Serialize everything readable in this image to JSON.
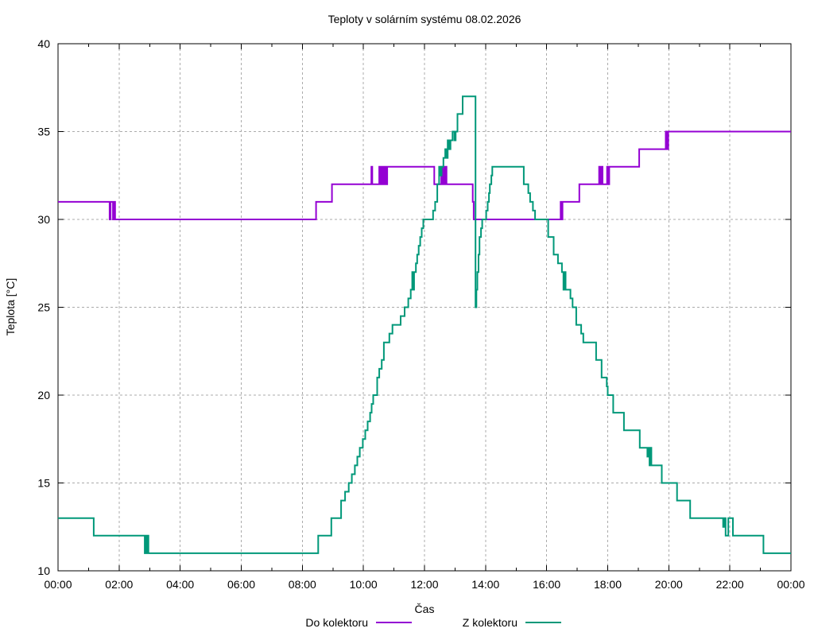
{
  "chart_data": {
    "type": "line",
    "title": "Teploty v solárním systému 08.02.2026",
    "xlabel": "Čas",
    "ylabel": "Teplota [°C]",
    "xlim": [
      0,
      24
    ],
    "ylim": [
      10,
      40
    ],
    "grid": "dashed",
    "background": "#ffffff",
    "border_color": "#000000",
    "grid_color": "#ababab",
    "legend_position": "bottom-center",
    "x_major_tick_step_hours": 2,
    "x_minor_tick_step_hours": 1,
    "x_tick_labels": [
      "00:00",
      "02:00",
      "04:00",
      "06:00",
      "08:00",
      "10:00",
      "12:00",
      "14:00",
      "16:00",
      "18:00",
      "20:00",
      "22:00",
      "00:00"
    ],
    "y_ticks": [
      10,
      15,
      20,
      25,
      30,
      35,
      40
    ],
    "series": [
      {
        "name": "Do kolektoru",
        "color": "#9400d3",
        "style": "steps",
        "steps": [
          [
            0.0,
            31
          ],
          [
            1.69,
            30
          ],
          [
            1.72,
            31
          ],
          [
            1.8,
            30
          ],
          [
            1.83,
            31
          ],
          [
            1.87,
            30
          ],
          [
            8.45,
            31
          ],
          [
            8.97,
            32
          ],
          [
            10.26,
            33
          ],
          [
            10.29,
            32
          ],
          [
            10.52,
            33
          ],
          [
            10.56,
            32
          ],
          [
            10.6,
            33
          ],
          [
            10.64,
            32
          ],
          [
            10.68,
            33
          ],
          [
            10.73,
            32
          ],
          [
            10.78,
            33
          ],
          [
            12.32,
            32
          ],
          [
            12.55,
            33
          ],
          [
            12.58,
            32
          ],
          [
            12.62,
            33
          ],
          [
            12.65,
            32
          ],
          [
            12.69,
            33
          ],
          [
            12.72,
            32
          ],
          [
            13.58,
            31
          ],
          [
            13.61,
            30
          ],
          [
            16.46,
            31
          ],
          [
            16.49,
            30
          ],
          [
            16.52,
            31
          ],
          [
            17.07,
            32
          ],
          [
            17.72,
            33
          ],
          [
            17.75,
            32
          ],
          [
            17.79,
            33
          ],
          [
            17.83,
            32
          ],
          [
            17.98,
            33
          ],
          [
            18.02,
            32
          ],
          [
            18.05,
            33
          ],
          [
            19.03,
            34
          ],
          [
            19.9,
            35
          ],
          [
            19.93,
            34
          ],
          [
            19.98,
            35
          ]
        ]
      },
      {
        "name": "Z kolektoru",
        "color": "#009879",
        "style": "steps",
        "steps": [
          [
            0.0,
            13
          ],
          [
            1.17,
            12
          ],
          [
            2.84,
            11
          ],
          [
            2.87,
            12
          ],
          [
            2.9,
            11
          ],
          [
            2.93,
            12
          ],
          [
            2.96,
            11
          ],
          [
            8.52,
            12
          ],
          [
            8.95,
            13
          ],
          [
            9.27,
            14
          ],
          [
            9.4,
            14.5
          ],
          [
            9.52,
            15
          ],
          [
            9.62,
            15.5
          ],
          [
            9.72,
            16
          ],
          [
            9.8,
            16.5
          ],
          [
            9.88,
            17
          ],
          [
            9.98,
            17.5
          ],
          [
            10.06,
            18
          ],
          [
            10.14,
            18.5
          ],
          [
            10.22,
            19
          ],
          [
            10.27,
            19.5
          ],
          [
            10.32,
            20
          ],
          [
            10.45,
            21
          ],
          [
            10.52,
            21.5
          ],
          [
            10.6,
            22
          ],
          [
            10.67,
            23
          ],
          [
            10.85,
            23.5
          ],
          [
            10.95,
            24
          ],
          [
            11.22,
            24.5
          ],
          [
            11.35,
            25
          ],
          [
            11.47,
            25.5
          ],
          [
            11.55,
            26
          ],
          [
            11.6,
            27
          ],
          [
            11.63,
            26
          ],
          [
            11.66,
            27
          ],
          [
            11.72,
            27.5
          ],
          [
            11.76,
            28
          ],
          [
            11.81,
            28.5
          ],
          [
            11.86,
            29
          ],
          [
            11.91,
            29.5
          ],
          [
            11.96,
            30
          ],
          [
            12.28,
            30.5
          ],
          [
            12.35,
            31
          ],
          [
            12.42,
            32
          ],
          [
            12.48,
            33
          ],
          [
            12.52,
            32.5
          ],
          [
            12.56,
            33
          ],
          [
            12.62,
            33.5
          ],
          [
            12.68,
            34
          ],
          [
            12.72,
            33.5
          ],
          [
            12.76,
            34.5
          ],
          [
            12.8,
            34
          ],
          [
            12.85,
            34.5
          ],
          [
            12.92,
            35
          ],
          [
            12.98,
            34.5
          ],
          [
            13.02,
            35
          ],
          [
            13.08,
            36
          ],
          [
            13.25,
            37
          ],
          [
            13.67,
            25
          ],
          [
            13.7,
            26
          ],
          [
            13.73,
            27
          ],
          [
            13.77,
            28
          ],
          [
            13.8,
            29
          ],
          [
            13.85,
            29.5
          ],
          [
            13.89,
            30
          ],
          [
            14.02,
            30.5
          ],
          [
            14.07,
            31
          ],
          [
            14.11,
            31.5
          ],
          [
            14.14,
            32
          ],
          [
            14.19,
            32.5
          ],
          [
            14.22,
            33
          ],
          [
            15.25,
            32
          ],
          [
            15.4,
            31.5
          ],
          [
            15.46,
            31
          ],
          [
            15.55,
            30.5
          ],
          [
            15.62,
            30
          ],
          [
            16.05,
            29
          ],
          [
            16.23,
            28
          ],
          [
            16.37,
            27.5
          ],
          [
            16.5,
            27
          ],
          [
            16.55,
            26
          ],
          [
            16.58,
            27
          ],
          [
            16.62,
            26
          ],
          [
            16.78,
            25.5
          ],
          [
            16.85,
            25
          ],
          [
            16.97,
            24
          ],
          [
            17.13,
            23.5
          ],
          [
            17.2,
            23
          ],
          [
            17.62,
            22
          ],
          [
            17.8,
            21
          ],
          [
            17.97,
            20.5
          ],
          [
            18.0,
            20
          ],
          [
            18.18,
            19
          ],
          [
            18.53,
            18
          ],
          [
            19.05,
            17
          ],
          [
            19.3,
            16.5
          ],
          [
            19.33,
            17
          ],
          [
            19.37,
            16
          ],
          [
            19.4,
            17
          ],
          [
            19.43,
            16
          ],
          [
            19.77,
            15
          ],
          [
            20.27,
            14
          ],
          [
            20.7,
            13
          ],
          [
            21.78,
            12.5
          ],
          [
            21.81,
            13
          ],
          [
            21.86,
            12
          ],
          [
            21.95,
            13
          ],
          [
            22.1,
            12
          ],
          [
            23.1,
            11
          ]
        ]
      }
    ]
  }
}
